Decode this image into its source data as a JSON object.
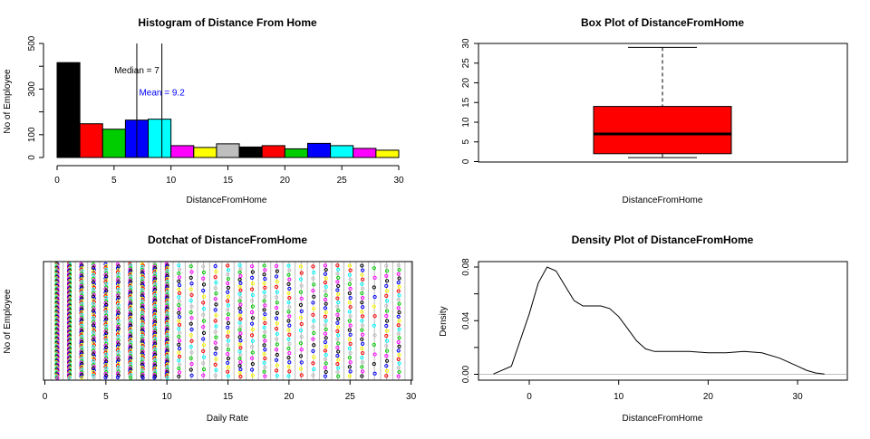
{
  "chart_data": [
    {
      "type": "bar",
      "title": "Histogram of Distance From Home",
      "xlabel": "DistanceFromHome",
      "ylabel": "No of Employee",
      "xlim": [
        0,
        30
      ],
      "ylim": [
        0,
        500
      ],
      "xticks": [
        "0",
        "5",
        "10",
        "15",
        "20",
        "25",
        "30"
      ],
      "yticks": [
        "0",
        "100",
        "300",
        "500"
      ],
      "bins": [
        [
          0,
          2
        ],
        [
          2,
          4
        ],
        [
          4,
          6
        ],
        [
          6,
          8
        ],
        [
          8,
          10
        ],
        [
          10,
          12
        ],
        [
          12,
          14
        ],
        [
          14,
          16
        ],
        [
          16,
          18
        ],
        [
          18,
          20
        ],
        [
          20,
          22
        ],
        [
          22,
          24
        ],
        [
          24,
          26
        ],
        [
          26,
          28
        ],
        [
          28,
          30
        ]
      ],
      "values": [
        416,
        148,
        124,
        164,
        168,
        52,
        44,
        60,
        46,
        52,
        38,
        62,
        52,
        40,
        32
      ],
      "bar_colors": [
        "#000000",
        "#ff0000",
        "#00cd00",
        "#0000ff",
        "#00ffff",
        "#ff00ff",
        "#ffff00",
        "#bebebe",
        "#000000",
        "#ff0000",
        "#00cd00",
        "#0000ff",
        "#00ffff",
        "#ff00ff",
        "#ffff00"
      ],
      "annotations": [
        {
          "text": "Median = 7",
          "x": 7,
          "y": 380,
          "color": "#000000"
        },
        {
          "text": "Mean = 9.2",
          "x": 9.2,
          "y": 283,
          "color": "#0000ff"
        }
      ],
      "vlines": [
        7,
        9.2
      ]
    },
    {
      "type": "box",
      "title": "Box Plot of DistanceFromHome",
      "xlabel": "DistanceFromHome",
      "ylim": [
        0,
        30
      ],
      "yticks": [
        "0",
        "5",
        "10",
        "15",
        "20",
        "25",
        "30"
      ],
      "min": 1,
      "q1": 2,
      "median": 7,
      "q3": 14,
      "max": 29,
      "fill": "#ff0000"
    },
    {
      "type": "scatter",
      "title": "Dotchat of DistanceFromHome",
      "xlabel": "Daily Rate",
      "ylabel": "No of Employee",
      "xlim": [
        0,
        30
      ],
      "xticks": [
        "0",
        "5",
        "10",
        "15",
        "20",
        "25",
        "30"
      ],
      "values_x": [
        1,
        2,
        3,
        4,
        5,
        6,
        7,
        8,
        9,
        10,
        11,
        12,
        13,
        14,
        15,
        16,
        17,
        18,
        19,
        20,
        21,
        22,
        23,
        24,
        25,
        26,
        27,
        28,
        29
      ],
      "counts": [
        208,
        211,
        84,
        64,
        65,
        59,
        84,
        80,
        85,
        86,
        29,
        20,
        19,
        21,
        26,
        32,
        20,
        26,
        22,
        25,
        18,
        19,
        27,
        28,
        25,
        25,
        12,
        23,
        27
      ],
      "point_colors": [
        "#000000",
        "#ff0000",
        "#00cd00",
        "#0000ff",
        "#00ffff",
        "#ff00ff",
        "#ffff00",
        "#bebebe"
      ],
      "grid": true
    },
    {
      "type": "line",
      "title": "Density Plot of DistanceFromHome",
      "xlabel": "DistanceFromHome",
      "ylabel": "Density",
      "xlim": [
        -5,
        35
      ],
      "ylim": [
        0,
        0.085
      ],
      "xticks": [
        "0",
        "10",
        "20",
        "30"
      ],
      "yticks": [
        "0.00",
        "0.04",
        "0.08"
      ],
      "x": [
        -4,
        -2,
        0,
        1,
        2,
        3,
        4,
        5,
        6,
        7,
        8,
        9,
        10,
        11,
        12,
        13,
        14,
        16,
        18,
        20,
        22,
        24,
        26,
        28,
        30,
        31,
        32,
        33
      ],
      "y": [
        0.0002,
        0.006,
        0.045,
        0.068,
        0.08,
        0.077,
        0.066,
        0.055,
        0.051,
        0.051,
        0.051,
        0.049,
        0.043,
        0.034,
        0.025,
        0.019,
        0.017,
        0.017,
        0.017,
        0.016,
        0.016,
        0.017,
        0.016,
        0.012,
        0.006,
        0.003,
        0.001,
        0.0002
      ],
      "baseline": 0
    }
  ]
}
